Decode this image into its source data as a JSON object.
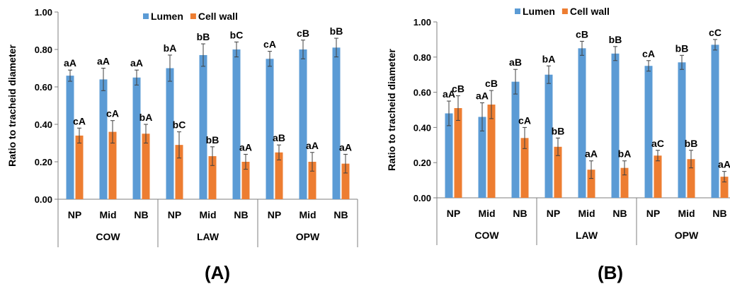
{
  "colors": {
    "lumen": "#5b9bd5",
    "cell_wall": "#ed7d31",
    "axis": "#7f7f7f",
    "error": "#404040"
  },
  "chart_data": [
    {
      "type": "bar",
      "panel_label": "(A)",
      "ylabel": "Ratio to tracheid diameter",
      "ylim": [
        0,
        1
      ],
      "yticks": [
        "0.00",
        "0.20",
        "0.40",
        "0.60",
        "0.80",
        "1.00"
      ],
      "legend": {
        "position": "top",
        "entries": [
          "Lumen",
          "Cell wall"
        ]
      },
      "groups": [
        {
          "name": "COW",
          "categories": [
            "NP",
            "Mid",
            "NB"
          ]
        },
        {
          "name": "LAW",
          "categories": [
            "NP",
            "Mid",
            "NB"
          ]
        },
        {
          "name": "OPW",
          "categories": [
            "NP",
            "Mid",
            "NB"
          ]
        }
      ],
      "categories": [
        "NP",
        "Mid",
        "NB",
        "NP",
        "Mid",
        "NB",
        "NP",
        "Mid",
        "NB"
      ],
      "series": [
        {
          "name": "Lumen",
          "values": [
            0.66,
            0.64,
            0.65,
            0.7,
            0.77,
            0.8,
            0.75,
            0.8,
            0.81
          ],
          "errors": [
            0.03,
            0.06,
            0.04,
            0.07,
            0.06,
            0.04,
            0.04,
            0.05,
            0.05
          ],
          "labels": [
            "aA",
            "aA",
            "aA",
            "bA",
            "bB",
            "bC",
            "cA",
            "cB",
            "bB"
          ]
        },
        {
          "name": "Cell wall",
          "values": [
            0.34,
            0.36,
            0.35,
            0.29,
            0.23,
            0.2,
            0.25,
            0.2,
            0.19
          ],
          "errors": [
            0.04,
            0.06,
            0.05,
            0.07,
            0.05,
            0.04,
            0.04,
            0.05,
            0.05
          ],
          "labels": [
            "cA",
            "cA",
            "bA",
            "bC",
            "bB",
            "aA",
            "aB",
            "aA",
            "aA"
          ]
        }
      ]
    },
    {
      "type": "bar",
      "panel_label": "(B)",
      "ylabel": "Ratio to tracheid diameter",
      "ylim": [
        0,
        1
      ],
      "yticks": [
        "0.00",
        "0.20",
        "0.40",
        "0.60",
        "0.80",
        "1.00"
      ],
      "legend": {
        "position": "top",
        "entries": [
          "Lumen",
          "Cell wall"
        ]
      },
      "groups": [
        {
          "name": "COW",
          "categories": [
            "NP",
            "Mid",
            "NB"
          ]
        },
        {
          "name": "LAW",
          "categories": [
            "NP",
            "Mid",
            "NB"
          ]
        },
        {
          "name": "OPW",
          "categories": [
            "NP",
            "Mid",
            "NB"
          ]
        }
      ],
      "categories": [
        "NP",
        "Mid",
        "NB",
        "NP",
        "Mid",
        "NB",
        "NP",
        "Mid",
        "NB"
      ],
      "series": [
        {
          "name": "Lumen",
          "values": [
            0.48,
            0.46,
            0.66,
            0.7,
            0.85,
            0.82,
            0.75,
            0.77,
            0.87
          ],
          "errors": [
            0.07,
            0.08,
            0.07,
            0.05,
            0.04,
            0.04,
            0.03,
            0.04,
            0.03
          ],
          "labels": [
            "aA",
            "aA",
            "aB",
            "bA",
            "cB",
            "bB",
            "cA",
            "bB",
            "cC"
          ]
        },
        {
          "name": "Cell wall",
          "values": [
            0.51,
            0.53,
            0.34,
            0.29,
            0.16,
            0.17,
            0.24,
            0.22,
            0.12
          ],
          "errors": [
            0.07,
            0.08,
            0.06,
            0.05,
            0.05,
            0.04,
            0.03,
            0.05,
            0.03
          ],
          "labels": [
            "cB",
            "cB",
            "cA",
            "bB",
            "aA",
            "bA",
            "aC",
            "bB",
            "aA"
          ]
        }
      ]
    }
  ]
}
